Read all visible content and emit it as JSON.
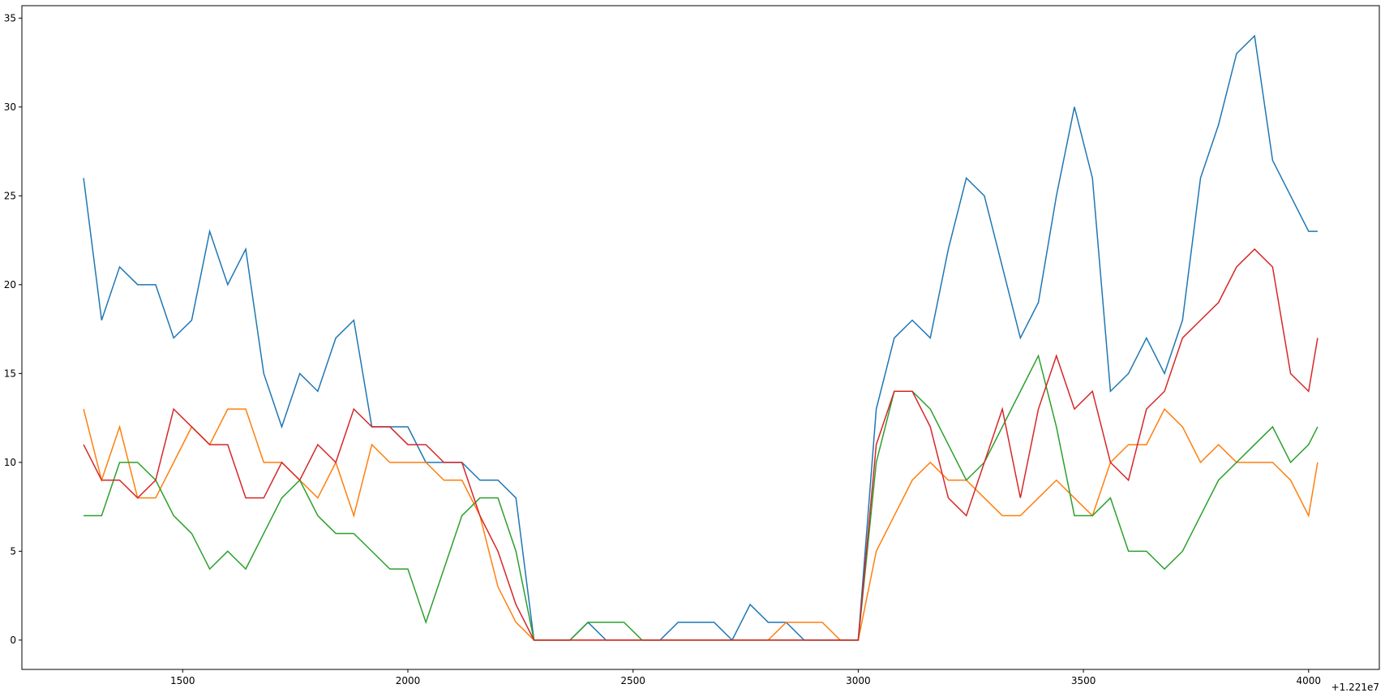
{
  "chart_data": {
    "type": "line",
    "x_offset_label": "+1.221e7",
    "x": [
      1280,
      1320,
      1360,
      1400,
      1440,
      1480,
      1520,
      1560,
      1600,
      1640,
      1680,
      1720,
      1760,
      1800,
      1840,
      1880,
      1920,
      1960,
      2000,
      2040,
      2080,
      2120,
      2160,
      2200,
      2240,
      2280,
      2320,
      2360,
      2400,
      2440,
      2480,
      2520,
      2560,
      2600,
      2640,
      2680,
      2720,
      2760,
      2800,
      2840,
      2880,
      2920,
      2960,
      3000,
      3040,
      3080,
      3120,
      3160,
      3200,
      3240,
      3280,
      3320,
      3360,
      3400,
      3440,
      3480,
      3520,
      3560,
      3600,
      3640,
      3680,
      3720,
      3760,
      3800,
      3840,
      3880,
      3920,
      3960,
      4000,
      4020
    ],
    "series": [
      {
        "color": "#1f77b4",
        "values": [
          26,
          18,
          21,
          20,
          20,
          17,
          18,
          23,
          20,
          22,
          15,
          12,
          15,
          14,
          17,
          18,
          12,
          12,
          12,
          10,
          10,
          10,
          9,
          9,
          8,
          0,
          0,
          0,
          1,
          0,
          0,
          0,
          0,
          1,
          1,
          1,
          0,
          2,
          1,
          1,
          0,
          0,
          0,
          0,
          13,
          17,
          18,
          17,
          22,
          26,
          25,
          21,
          17,
          19,
          25,
          30,
          26,
          14,
          15,
          17,
          15,
          18,
          26,
          29,
          33,
          34,
          27,
          25,
          23,
          23
        ]
      },
      {
        "color": "#ff7f0e",
        "values": [
          13,
          9,
          12,
          8,
          8,
          10,
          12,
          11,
          13,
          13,
          10,
          10,
          9,
          8,
          10,
          7,
          11,
          10,
          10,
          10,
          9,
          9,
          7,
          3,
          1,
          0,
          0,
          0,
          0,
          0,
          0,
          0,
          0,
          0,
          0,
          0,
          0,
          0,
          0,
          1,
          1,
          1,
          0,
          0,
          5,
          7,
          9,
          10,
          9,
          9,
          8,
          7,
          7,
          8,
          9,
          8,
          7,
          10,
          11,
          11,
          13,
          12,
          10,
          11,
          10,
          10,
          10,
          9,
          7,
          10
        ]
      },
      {
        "color": "#2ca02c",
        "values": [
          7,
          7,
          10,
          10,
          9,
          7,
          6,
          4,
          5,
          4,
          6,
          8,
          9,
          7,
          6,
          6,
          5,
          4,
          4,
          1,
          4,
          7,
          8,
          8,
          5,
          0,
          0,
          0,
          1,
          1,
          1,
          0,
          0,
          0,
          0,
          0,
          0,
          0,
          0,
          0,
          0,
          0,
          0,
          0,
          10,
          14,
          14,
          13,
          11,
          9,
          10,
          12,
          14,
          16,
          12,
          7,
          7,
          8,
          5,
          5,
          4,
          5,
          7,
          9,
          10,
          11,
          12,
          10,
          11,
          12
        ]
      },
      {
        "color": "#d62728",
        "values": [
          11,
          9,
          9,
          8,
          9,
          13,
          12,
          11,
          11,
          8,
          8,
          10,
          9,
          11,
          10,
          13,
          12,
          12,
          11,
          11,
          10,
          10,
          7,
          5,
          2,
          0,
          0,
          0,
          0,
          0,
          0,
          0,
          0,
          0,
          0,
          0,
          0,
          0,
          0,
          0,
          0,
          0,
          0,
          0,
          11,
          14,
          14,
          12,
          8,
          7,
          10,
          13,
          8,
          13,
          16,
          13,
          14,
          10,
          9,
          13,
          14,
          17,
          18,
          19,
          21,
          22,
          21,
          15,
          14,
          17
        ]
      }
    ],
    "xlim": [
      1143,
      4157
    ],
    "ylim": [
      -1.65,
      35.7
    ],
    "xticks": [
      1500,
      2000,
      2500,
      3000,
      3500,
      4000
    ],
    "yticks": [
      0,
      5,
      10,
      15,
      20,
      25,
      30,
      35
    ]
  }
}
